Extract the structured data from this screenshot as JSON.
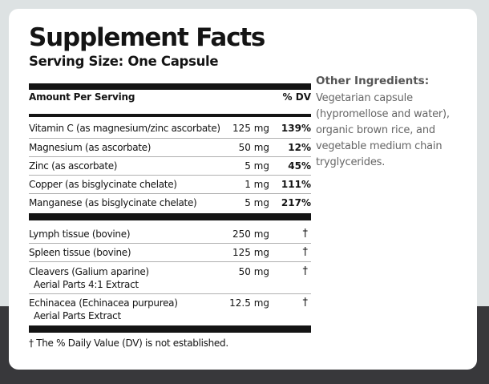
{
  "title": "Supplement Facts",
  "serving_size": "Serving Size: One Capsule",
  "header": {
    "amount_label": "Amount Per Serving",
    "dv_label": "% DV"
  },
  "vitamins": [
    {
      "name": "Vitamin C (as magnesium/zinc ascorbate)",
      "amount": "125 mg",
      "dv": "139%"
    },
    {
      "name": "Magnesium (as ascorbate)",
      "amount": "50 mg",
      "dv": "12%"
    },
    {
      "name": "Zinc (as ascorbate)",
      "amount": "5 mg",
      "dv": "45%"
    },
    {
      "name": "Copper (as bisglycinate chelate)",
      "amount": "1 mg",
      "dv": "111%"
    },
    {
      "name": "Manganese (as bisglycinate chelate)",
      "amount": "5 mg",
      "dv": "217%"
    }
  ],
  "others": [
    {
      "name": "Lymph tissue (bovine)",
      "name2": "",
      "amount": "250 mg",
      "dv": "†"
    },
    {
      "name": "Spleen tissue (bovine)",
      "name2": "",
      "amount": "125 mg",
      "dv": "†"
    },
    {
      "name": "Cleavers (Galium aparine)",
      "name2": "Aerial Parts 4:1 Extract",
      "amount": "50 mg",
      "dv": "†"
    },
    {
      "name": "Echinacea (Echinacea purpurea)",
      "name2": "Aerial Parts Extract",
      "amount": "12.5 mg",
      "dv": "†"
    }
  ],
  "footnote": "† The % Daily Value (DV) is not established.",
  "other_ingredients": {
    "title": "Other Ingredients:",
    "text": "Vegetarian capsule (hypromellose and water), organic brown rice, and vegetable medium chain tryglycerides."
  }
}
